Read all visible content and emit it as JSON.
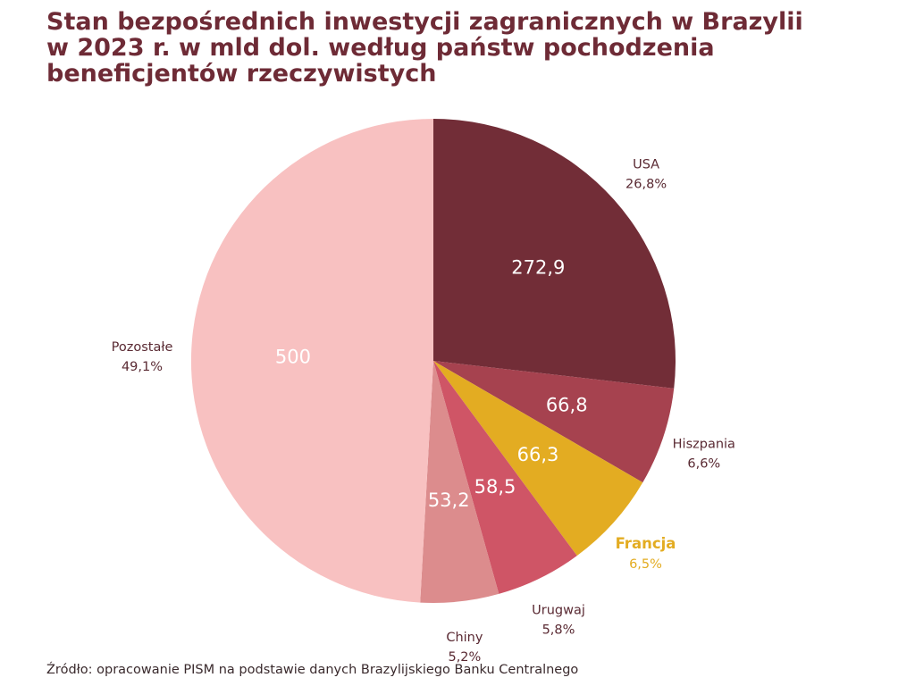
{
  "title_lines": [
    "Stan bezpośrednich inwestycji zagranicznych w Brazylii",
    "w 2023 r. w mld dol. według państw pochodzenia",
    "beneficjentów rzeczywistych"
  ],
  "source": "Źródło: opracowanie PISM na podstawie danych Brazylijskiego Banku Centralnego",
  "chart_data": {
    "type": "pie",
    "title": "Stan bezpośrednich inwestycji zagranicznych w Brazylii w 2023 r. w mld dol. według państw pochodzenia beneficjentów rzeczywistych",
    "start": "12 o'clock",
    "direction": "clockwise",
    "slices": [
      {
        "label": "USA",
        "value": 272.9,
        "value_label": "272,9",
        "percent": "26,8%",
        "color": "#722d37",
        "highlight": false
      },
      {
        "label": "Hiszpania",
        "value": 66.8,
        "value_label": "66,8",
        "percent": "6,6%",
        "color": "#a6424f",
        "highlight": false
      },
      {
        "label": "Francja",
        "value": 66.3,
        "value_label": "66,3",
        "percent": "6,5%",
        "color": "#e3ac22",
        "highlight": true
      },
      {
        "label": "Urugwaj",
        "value": 58.5,
        "value_label": "58,5",
        "percent": "5,8%",
        "color": "#cf5566",
        "highlight": false
      },
      {
        "label": "Chiny",
        "value": 53.2,
        "value_label": "53,2",
        "percent": "5,2%",
        "color": "#dc8c8d",
        "highlight": false
      },
      {
        "label": "Pozostałe",
        "value": 500,
        "value_label": "500",
        "percent": "49,1%",
        "color": "#f8c1c1",
        "highlight": false
      }
    ]
  }
}
